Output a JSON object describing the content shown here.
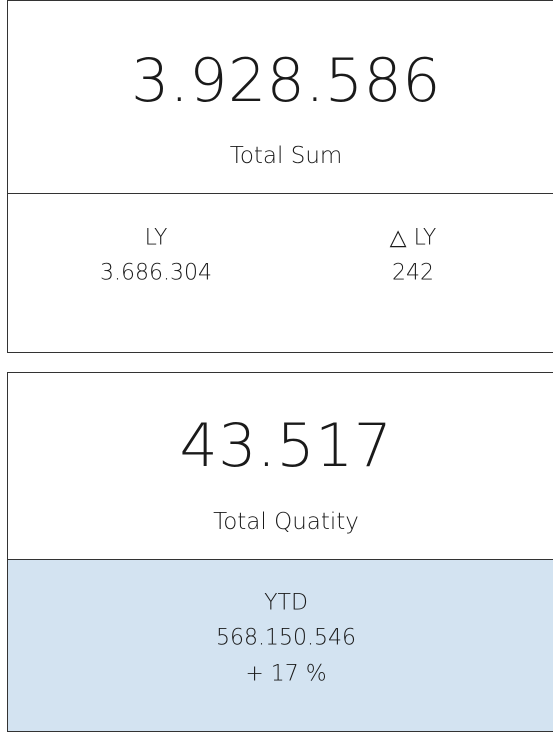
{
  "cards": [
    {
      "value": "3.928.586",
      "label": "Total Sum",
      "details": [
        {
          "label": "LY",
          "value": "3.686.304"
        },
        {
          "label": "△ LY",
          "value": "242"
        }
      ]
    },
    {
      "value": "43.517",
      "label": "Total Quatity",
      "details": [
        {
          "label": "YTD",
          "value": "568.150.546",
          "change": "+ 17 %"
        }
      ]
    }
  ]
}
